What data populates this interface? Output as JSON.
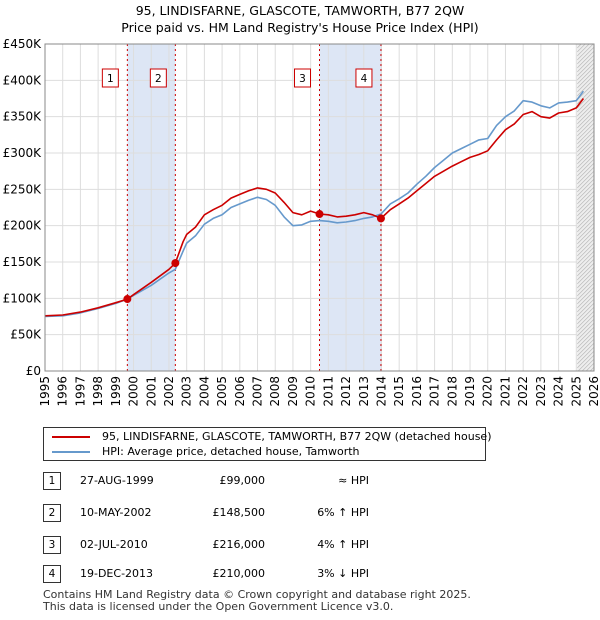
{
  "title": {
    "line1": "95, LINDISFARNE, GLASCOTE, TAMWORTH, B77 2QW",
    "line2": "Price paid vs. HM Land Registry's House Price Index (HPI)"
  },
  "colors": {
    "price_line": "#cc0000",
    "hpi_line": "#6699cc",
    "shade": "#dde6f5",
    "grid": "#dddddd",
    "marker": "#cc0000",
    "event_line": "#cc0000"
  },
  "chart_data": {
    "type": "line",
    "title": "95, LINDISFARNE, GLASCOTE, TAMWORTH, B77 2QW",
    "xlabel": "",
    "ylabel": "",
    "xlim": [
      1995,
      2026
    ],
    "ylim": [
      0,
      450000
    ],
    "x_ticks": [
      1995,
      1996,
      1997,
      1998,
      1999,
      2000,
      2001,
      2002,
      2003,
      2004,
      2005,
      2006,
      2007,
      2008,
      2009,
      2010,
      2011,
      2012,
      2013,
      2014,
      2015,
      2016,
      2017,
      2018,
      2019,
      2020,
      2021,
      2022,
      2023,
      2024,
      2025,
      2026
    ],
    "x_tick_labels": [
      "1995",
      "1996",
      "1997",
      "1998",
      "1999",
      "2000",
      "2001",
      "2002",
      "2003",
      "2004",
      "2005",
      "2006",
      "2007",
      "2008",
      "2009",
      "2010",
      "2011",
      "2012",
      "2013",
      "2014",
      "2015",
      "2016",
      "2017",
      "2018",
      "2019",
      "2020",
      "2021",
      "2022",
      "2023",
      "2024",
      "2025",
      "2026"
    ],
    "y_ticks": [
      0,
      50000,
      100000,
      150000,
      200000,
      250000,
      300000,
      350000,
      400000,
      450000
    ],
    "y_tick_labels": [
      "£0",
      "£50K",
      "£100K",
      "£150K",
      "£200K",
      "£250K",
      "£300K",
      "£350K",
      "£400K",
      "£450K"
    ],
    "grid": true,
    "legend_position": "below",
    "shaded_ranges": [
      [
        1999.65,
        2002.36
      ],
      [
        2010.5,
        2013.97
      ]
    ],
    "forecast_start": 2025.05,
    "series": [
      {
        "name": "95, LINDISFARNE, GLASCOTE, TAMWORTH, B77 2QW (detached house)",
        "x": [
          1995.0,
          1996.0,
          1997.0,
          1998.0,
          1999.0,
          1999.65,
          2000.0,
          2001.0,
          2002.0,
          2002.36,
          2002.8,
          2003.0,
          2003.5,
          2004.0,
          2004.5,
          2005.0,
          2005.5,
          2006.0,
          2006.5,
          2007.0,
          2007.5,
          2008.0,
          2008.5,
          2009.0,
          2009.5,
          2010.0,
          2010.5,
          2011.0,
          2011.5,
          2012.0,
          2012.5,
          2013.0,
          2013.5,
          2013.97,
          2014.5,
          2015.0,
          2015.5,
          2016.0,
          2016.5,
          2017.0,
          2017.5,
          2018.0,
          2018.5,
          2019.0,
          2019.5,
          2020.0,
          2020.5,
          2021.0,
          2021.5,
          2022.0,
          2022.5,
          2023.0,
          2023.5,
          2024.0,
          2024.5,
          2025.0,
          2025.4
        ],
        "values": [
          76000,
          77000,
          81000,
          87000,
          94000,
          99000,
          105000,
          122000,
          140000,
          148500,
          178000,
          188000,
          198000,
          215000,
          222000,
          228000,
          238000,
          243000,
          248000,
          252000,
          250000,
          245000,
          232000,
          218000,
          215000,
          220000,
          216000,
          215000,
          212000,
          213000,
          215000,
          218000,
          215000,
          210000,
          222000,
          230000,
          238000,
          248000,
          258000,
          268000,
          275000,
          282000,
          288000,
          294000,
          298000,
          303000,
          318000,
          332000,
          340000,
          353000,
          357000,
          350000,
          348000,
          355000,
          357000,
          362000,
          375000
        ]
      },
      {
        "name": "HPI: Average price, detached house, Tamworth",
        "x": [
          1995.0,
          1996.0,
          1997.0,
          1998.0,
          1999.0,
          1999.65,
          2000.0,
          2001.0,
          2002.0,
          2002.36,
          2002.8,
          2003.0,
          2003.5,
          2004.0,
          2004.5,
          2005.0,
          2005.5,
          2006.0,
          2006.5,
          2007.0,
          2007.5,
          2008.0,
          2008.5,
          2009.0,
          2009.5,
          2010.0,
          2010.5,
          2011.0,
          2011.5,
          2012.0,
          2012.5,
          2013.0,
          2013.5,
          2013.97,
          2014.5,
          2015.0,
          2015.5,
          2016.0,
          2016.5,
          2017.0,
          2017.5,
          2018.0,
          2018.5,
          2019.0,
          2019.5,
          2020.0,
          2020.5,
          2021.0,
          2021.5,
          2022.0,
          2022.5,
          2023.0,
          2023.5,
          2024.0,
          2024.5,
          2025.0,
          2025.4
        ],
        "values": [
          75000,
          76000,
          80000,
          86000,
          93000,
          99000,
          104000,
          118000,
          135000,
          140000,
          165000,
          176000,
          186000,
          202000,
          210000,
          215000,
          225000,
          230000,
          235000,
          239000,
          236000,
          228000,
          212000,
          200000,
          201000,
          206000,
          207000,
          206000,
          204000,
          205000,
          207000,
          210000,
          212000,
          216000,
          230000,
          237000,
          245000,
          257000,
          268000,
          280000,
          290000,
          300000,
          306000,
          312000,
          318000,
          320000,
          338000,
          350000,
          358000,
          372000,
          370000,
          365000,
          362000,
          369000,
          370000,
          372000,
          385000
        ]
      }
    ],
    "markers": [
      {
        "label": "1",
        "x": 1999.65,
        "y": 99000
      },
      {
        "label": "2",
        "x": 2002.36,
        "y": 148500
      },
      {
        "label": "3",
        "x": 2010.5,
        "y": 216000
      },
      {
        "label": "4",
        "x": 2013.97,
        "y": 210000
      }
    ]
  },
  "legend": {
    "property_label": "95, LINDISFARNE, GLASCOTE, TAMWORTH, B77 2QW (detached house)",
    "hpi_label": "HPI: Average price, detached house, Tamworth"
  },
  "transactions": [
    {
      "num": "1",
      "date": "27-AUG-1999",
      "price": "£99,000",
      "hpi": "≈ HPI"
    },
    {
      "num": "2",
      "date": "10-MAY-2002",
      "price": "£148,500",
      "hpi": "6% ↑ HPI"
    },
    {
      "num": "3",
      "date": "02-JUL-2010",
      "price": "£216,000",
      "hpi": "4% ↑ HPI"
    },
    {
      "num": "4",
      "date": "19-DEC-2013",
      "price": "£210,000",
      "hpi": "3% ↓ HPI"
    }
  ],
  "footer": {
    "line1": "Contains HM Land Registry data © Crown copyright and database right 2025.",
    "line2": "This data is licensed under the Open Government Licence v3.0."
  }
}
